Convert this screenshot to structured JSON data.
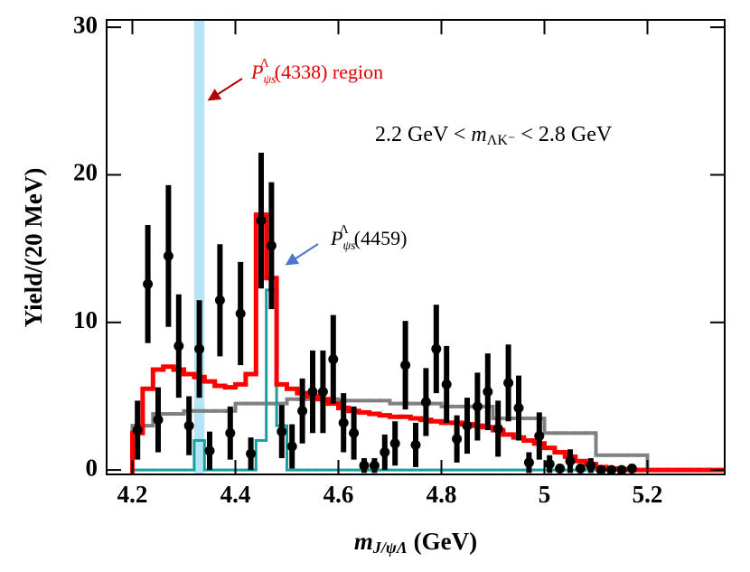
{
  "chart_data": {
    "type": "histogram",
    "xlabel": {
      "main": "m",
      "sub": "J/ψΛ",
      "unit": " (GeV)"
    },
    "ylabel": "Yield/(20 MeV)",
    "xlim": [
      4.15,
      5.35
    ],
    "ylim": [
      -0.3,
      30.5
    ],
    "xticks": [
      4.2,
      4.4,
      4.6,
      4.8,
      5.0,
      5.2
    ],
    "yticks": [
      0,
      10,
      20,
      30
    ],
    "band": {
      "range": [
        4.32,
        4.34
      ],
      "color": "#b6e4f7"
    },
    "annotations": [
      {
        "base": "P",
        "sub": "ψs",
        "sup": "Λ",
        "rest": "(4338) region",
        "color": "#e00000"
      },
      {
        "base": "P",
        "sub": "ψs",
        "sup": "Λ",
        "rest": "(4459)",
        "color": "#000000"
      },
      {
        "lead": "2.2 GeV < ",
        "base": "m",
        "sub": "ΛK⁻",
        "rest": " < 2.8 GeV",
        "color": "#000000"
      }
    ],
    "bins": [
      4.2,
      4.22,
      4.24,
      4.26,
      4.28,
      4.3,
      4.32,
      4.34,
      4.36,
      4.38,
      4.4,
      4.42,
      4.44,
      4.46,
      4.48,
      4.5,
      4.52,
      4.54,
      4.56,
      4.58,
      4.6,
      4.62,
      4.64,
      4.66,
      4.68,
      4.7,
      4.72,
      4.74,
      4.76,
      4.78,
      4.8,
      4.82,
      4.84,
      4.86,
      4.88,
      4.9,
      4.92,
      4.94,
      4.96,
      4.98,
      5.0,
      5.02,
      5.04,
      5.06,
      5.08,
      5.1,
      5.12,
      5.14,
      5.16,
      5.18,
      5.2,
      5.22,
      5.24,
      5.26,
      5.28,
      5.3,
      5.32,
      5.34,
      5.36
    ],
    "series": [
      {
        "color": "#808080",
        "width": 4,
        "values": [
          3.0,
          3.0,
          3.8,
          3.8,
          3.8,
          4.0,
          4.0,
          4.0,
          4.0,
          4.0,
          4.5,
          4.5,
          4.5,
          4.5,
          4.5,
          4.8,
          4.8,
          4.8,
          4.8,
          4.8,
          4.7,
          4.7,
          4.7,
          4.7,
          4.7,
          4.5,
          4.5,
          4.5,
          4.5,
          4.5,
          4.3,
          4.3,
          4.3,
          4.3,
          4.3,
          3.5,
          3.5,
          3.5,
          3.5,
          3.5,
          2.5,
          2.5,
          2.5,
          2.5,
          2.5,
          1.0,
          1.0,
          1.0,
          1.0,
          1.0,
          0,
          0,
          0,
          0,
          0,
          0,
          0,
          0
        ]
      },
      {
        "color": "#1a9e9e",
        "width": 3,
        "values": [
          0,
          0,
          0,
          0,
          0,
          0,
          2.0,
          0,
          0,
          0,
          0,
          0,
          2.0,
          12.2,
          3.0,
          0,
          0,
          0,
          0,
          0,
          0,
          0,
          0,
          0,
          0,
          0,
          0,
          0,
          0,
          0,
          0,
          0,
          0,
          0,
          0,
          0,
          0,
          0,
          0,
          0,
          0,
          0,
          0,
          0,
          0,
          0,
          0,
          0,
          0,
          0,
          0,
          0,
          0,
          0,
          0,
          0,
          0,
          0
        ]
      },
      {
        "color": "#ff0000",
        "width": 5,
        "values": [
          2.5,
          5.5,
          6.8,
          7.0,
          6.8,
          6.5,
          6.3,
          6.0,
          5.7,
          5.6,
          5.8,
          6.5,
          17.3,
          13.0,
          5.8,
          5.5,
          5.2,
          5.0,
          4.8,
          4.5,
          4.2,
          4.0,
          3.9,
          3.8,
          3.7,
          3.6,
          3.6,
          3.5,
          3.4,
          3.3,
          3.2,
          3.2,
          3.1,
          3.0,
          2.9,
          2.7,
          2.4,
          2.2,
          2.0,
          1.8,
          1.5,
          1.2,
          0.9,
          0.6,
          0.4,
          0.2,
          0.1,
          0.05,
          0,
          0,
          0,
          0,
          0,
          0,
          0,
          0,
          0,
          0
        ]
      }
    ],
    "points": {
      "color": "#000000",
      "x": [
        4.21,
        4.23,
        4.25,
        4.27,
        4.29,
        4.31,
        4.33,
        4.35,
        4.37,
        4.39,
        4.41,
        4.43,
        4.45,
        4.47,
        4.49,
        4.51,
        4.53,
        4.55,
        4.57,
        4.59,
        4.61,
        4.63,
        4.65,
        4.67,
        4.69,
        4.71,
        4.73,
        4.75,
        4.77,
        4.79,
        4.81,
        4.83,
        4.85,
        4.87,
        4.89,
        4.91,
        4.93,
        4.95,
        4.97,
        4.99,
        5.01,
        5.03,
        5.05,
        5.07,
        5.09,
        5.11,
        5.13,
        5.15,
        5.17
      ],
      "y": [
        2.7,
        12.6,
        3.4,
        14.5,
        8.4,
        3.0,
        8.2,
        1.3,
        11.5,
        2.5,
        10.6,
        1.1,
        16.9,
        15.2,
        2.6,
        1.6,
        4.0,
        5.3,
        5.3,
        7.5,
        3.2,
        2.5,
        0.3,
        0.3,
        1.2,
        1.8,
        7.1,
        1.7,
        4.6,
        8.2,
        5.8,
        2.1,
        3.0,
        4.3,
        5.3,
        2.8,
        5.9,
        4.2,
        0.5,
        2.3,
        0.4,
        0.1,
        0.6,
        0.1,
        0.3,
        0.0,
        0.0,
        0.0,
        0.1
      ],
      "err": [
        2.0,
        4.0,
        2.2,
        4.8,
        3.5,
        2.0,
        3.3,
        1.3,
        3.8,
        1.8,
        3.5,
        1.1,
        4.6,
        4.3,
        1.8,
        1.5,
        2.2,
        2.8,
        2.8,
        3.0,
        2.0,
        1.8,
        0.5,
        0.5,
        1.2,
        1.5,
        3.0,
        1.5,
        2.3,
        3.0,
        2.6,
        1.6,
        1.9,
        2.3,
        2.6,
        1.9,
        2.6,
        2.2,
        0.7,
        1.6,
        0.6,
        0.3,
        0.8,
        0.3,
        0.5,
        0,
        0,
        0,
        0.3
      ]
    }
  }
}
